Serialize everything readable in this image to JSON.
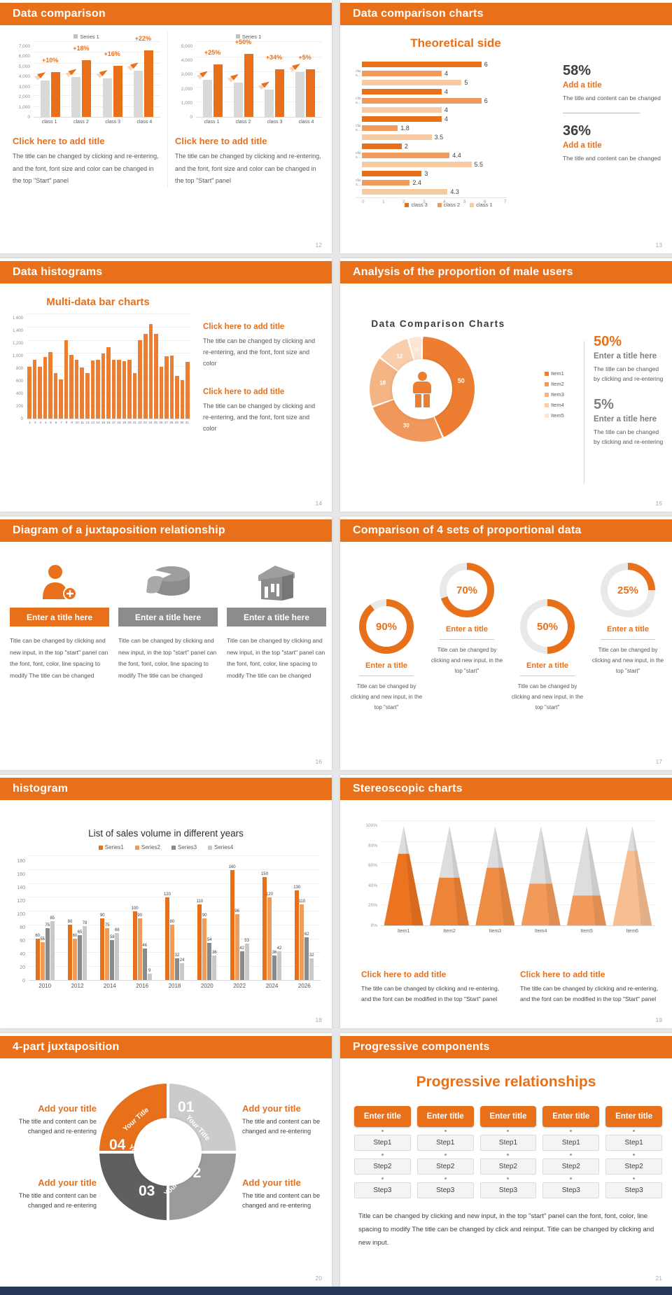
{
  "accent": "#E8701A",
  "slides": {
    "s12": {
      "header": "Data comparison",
      "page": "12",
      "panels": [
        {
          "legend": {
            "items": [
              {
                "label": "Series 1",
                "color": "#BFBFBF"
              }
            ]
          },
          "chart_data": {
            "type": "bar",
            "categories": [
              "class 1",
              "class 2",
              "class 3",
              "class 4"
            ],
            "series": [
              {
                "name": "base",
                "color": "#D9D9D9",
                "values": [
                  3400,
                  3700,
                  3600,
                  4300
                ]
              },
              {
                "name": "Series 1",
                "color": "#E8701A",
                "values": [
                  4200,
                  5300,
                  4800,
                  6200
                ]
              }
            ],
            "growth_labels": [
              "+10%",
              "+18%",
              "+16%",
              "+22%"
            ],
            "ylim": [
              0,
              7000
            ],
            "yticks": [
              "7,000",
              "6,000",
              "5,000",
              "4,000",
              "3,000",
              "2,000",
              "1,000",
              "0"
            ]
          },
          "title": "Click here to add title",
          "body": "The title can be changed by clicking and re-entering, and the font, font size and color can be changed in the top \"Start\" panel"
        },
        {
          "legend": {
            "items": [
              {
                "label": "Series 1",
                "color": "#BFBFBF"
              }
            ]
          },
          "chart_data": {
            "type": "bar",
            "categories": [
              "class 1",
              "class 2",
              "class 3",
              "class 4"
            ],
            "series": [
              {
                "name": "base",
                "color": "#D9D9D9",
                "values": [
                  2500,
                  2300,
                  1800,
                  3000
                ]
              },
              {
                "name": "Series 1",
                "color": "#E8701A",
                "values": [
                  3500,
                  4200,
                  3200,
                  3200
                ]
              }
            ],
            "growth_labels": [
              "+25%",
              "+50%",
              "+34%",
              "+5%"
            ],
            "ylim": [
              0,
              5000
            ],
            "yticks": [
              "5,000",
              "4,000",
              "3,000",
              "2,000",
              "1,000",
              "0"
            ]
          },
          "title": "Click here to add title",
          "body": "The title can be changed by clicking and re-entering, and the font, font size and color can be changed in the top \"Start\" panel"
        }
      ]
    },
    "s13": {
      "header": "Data comparison charts",
      "page": "13",
      "chart_title": "Theoretical side",
      "chart_data": {
        "type": "bar",
        "orientation": "horizontal",
        "group_label_display": "clas…",
        "colors": [
          "#E8701A",
          "#F09B5A",
          "#F6CBA4"
        ],
        "series_order": [
          "class 3",
          "class 2",
          "class 1"
        ],
        "groups": [
          [
            6,
            4,
            5
          ],
          [
            4,
            6,
            4
          ],
          [
            4,
            1.8,
            3.5
          ],
          [
            2,
            4.4,
            5.5
          ],
          [
            3,
            2.4,
            4.3
          ]
        ],
        "xlim": [
          0,
          7
        ],
        "xticks": [
          "0",
          "1",
          "2",
          "3",
          "4",
          "5",
          "6",
          "7"
        ]
      },
      "legend": {
        "items": [
          {
            "label": "class 3",
            "color": "#E8701A"
          },
          {
            "label": "class 2",
            "color": "#F09B5A"
          },
          {
            "label": "class 1",
            "color": "#F6CBA4"
          }
        ]
      },
      "stats": [
        {
          "pct": "58%",
          "title": "Add a title",
          "body": "The title and content can be changed"
        },
        {
          "pct": "36%",
          "title": "Add a title",
          "body": "The title and content can be changed"
        }
      ]
    },
    "s14": {
      "header": "Data histograms",
      "page": "14",
      "chart_title": "Multi-data bar charts",
      "chart_data": {
        "type": "bar",
        "color": "#ED7D31",
        "ylim": [
          0,
          1600
        ],
        "yticks": [
          "1,600",
          "1,400",
          "1,200",
          "1,000",
          "800",
          "600",
          "400",
          "200",
          "0"
        ],
        "x": [
          "1",
          "2",
          "3",
          "4",
          "5",
          "6",
          "7",
          "8",
          "9",
          "10",
          "11",
          "12",
          "13",
          "14",
          "15",
          "16",
          "17",
          "18",
          "19",
          "20",
          "21",
          "22",
          "23",
          "24",
          "25",
          "26",
          "27",
          "28",
          "29",
          "30",
          "31"
        ],
        "values": [
          800,
          900,
          800,
          950,
          1020,
          700,
          600,
          1200,
          980,
          900,
          780,
          700,
          890,
          900,
          1000,
          1100,
          900,
          900,
          880,
          900,
          700,
          1200,
          1300,
          1450,
          1300,
          800,
          960,
          970,
          660,
          590,
          870
        ]
      },
      "blocks": [
        {
          "title": "Click here to add title",
          "body": "The title can be changed by clicking and re-entering, and the font, font size and color"
        },
        {
          "title": "Click here to add title",
          "body": "The title can be changed by clicking and re-entering, and the font, font size and color"
        }
      ]
    },
    "s15": {
      "header": "Analysis of the proportion of male users",
      "page": "15",
      "chart_title": "Data Comparison Charts",
      "chart_data": {
        "type": "pie",
        "labels": [
          "Item1",
          "Item2",
          "Item3",
          "Item4",
          "Item5"
        ],
        "values": [
          50,
          30,
          18,
          12,
          5
        ],
        "colors": [
          "#ED7D31",
          "#F0985B",
          "#F4B484",
          "#F8CEAC",
          "#FBE5D3"
        ]
      },
      "legend": {
        "items": [
          {
            "label": "Item1",
            "color": "#ED7D31"
          },
          {
            "label": "Item2",
            "color": "#F0985B"
          },
          {
            "label": "Item3",
            "color": "#F4B484"
          },
          {
            "label": "Item4",
            "color": "#F8CEAC"
          },
          {
            "label": "Item5",
            "color": "#FBE5D3"
          }
        ]
      },
      "stats": [
        {
          "pct": "50%",
          "title": "Enter a title here",
          "body": "The title can be changed by clicking and re-entering"
        },
        {
          "pct": "5%",
          "title": "Enter a title here",
          "body": "The title can be changed by clicking and re-entering"
        }
      ]
    },
    "s16": {
      "header": "Diagram of a juxtaposition relationship",
      "page": "16",
      "items": [
        {
          "title": "Enter a title here",
          "color": "#E8701A",
          "icon": "person-plus-icon",
          "body": "Title can be changed by clicking and new input, in the top \"start\" panel can the font, font, color, line spacing to modify The title can be changed"
        },
        {
          "title": "Enter a title here",
          "color": "#8C8C8C",
          "icon": "cake-icon",
          "body": "Title can be changed by clicking and new input, in the top \"start\" panel can the font, font, color, line spacing to modify The title can be changed"
        },
        {
          "title": "Enter a title here",
          "color": "#8C8C8C",
          "icon": "building-icon",
          "body": "Title can be changed by clicking and new input, in the top \"start\" panel can the font, font, color, line spacing to modify The title can be changed"
        }
      ]
    },
    "s17": {
      "header": "Comparison of 4 sets of proportional data",
      "page": "17",
      "chart_data": {
        "type": "donut-gauges",
        "values": [
          90,
          70,
          50,
          25
        ]
      },
      "gauges": [
        {
          "pct": 90,
          "pct_label": "90%",
          "title": "Enter a title",
          "body": "Title can be changed by clicking and new input, in the top \"start\""
        },
        {
          "pct": 70,
          "pct_label": "70%",
          "title": "Enter a title",
          "body": "Title can be changed by clicking and new input, in the top \"start\""
        },
        {
          "pct": 50,
          "pct_label": "50%",
          "title": "Enter a title",
          "body": "Title can be changed by clicking and new input, in the top \"start\""
        },
        {
          "pct": 25,
          "pct_label": "25%",
          "title": "Enter a title",
          "body": "Title can be changed by clicking and new input, in the top \"start\""
        }
      ]
    },
    "s18": {
      "header": "histogram",
      "page": "18",
      "chart_title": "List of sales volume in different years",
      "chart_data": {
        "type": "bar",
        "categories": [
          "2010",
          "2012",
          "2014",
          "2016",
          "2018",
          "2020",
          "2022",
          "2024",
          "2026"
        ],
        "series": [
          {
            "name": "Series1",
            "color": "#E8701A",
            "values": [
              60,
              80,
              90,
              100,
              120,
              110,
              160,
              150,
              130
            ]
          },
          {
            "name": "Series2",
            "color": "#F19B59",
            "values": [
              55,
              60,
              75,
              90,
              80,
              90,
              96,
              120,
              110
            ]
          },
          {
            "name": "Series3",
            "color": "#8A8A8A",
            "values": [
              75,
              65,
              58,
              46,
              32,
              54,
              42,
              36,
              62
            ]
          },
          {
            "name": "Series4",
            "color": "#C9C9C9",
            "values": [
              85,
              78,
              68,
              9,
              24,
              36,
              53,
              42,
              32
            ]
          }
        ],
        "ylim": [
          0,
          180
        ],
        "yticks": [
          "180",
          "160",
          "140",
          "120",
          "100",
          "80",
          "60",
          "40",
          "20",
          "0"
        ]
      },
      "legend": {
        "items": [
          {
            "label": "Series1",
            "color": "#E8701A"
          },
          {
            "label": "Series2",
            "color": "#F19B59"
          },
          {
            "label": "Series3",
            "color": "#8A8A8A"
          },
          {
            "label": "Series4",
            "color": "#C9C9C9"
          }
        ]
      }
    },
    "s19": {
      "header": "Stereoscopic charts",
      "page": "19",
      "chart_data": {
        "type": "cone",
        "categories": [
          "Item1",
          "Item2",
          "Item3",
          "Item4",
          "Item5",
          "Item6"
        ],
        "values_pct": [
          72,
          48,
          58,
          42,
          30,
          75
        ],
        "colors": [
          "#EC7420",
          "#EE8438",
          "#EF8C44",
          "#F29A5A",
          "#F29A5A",
          "#F7BE92"
        ],
        "yticks": [
          "100%",
          "80%",
          "60%",
          "40%",
          "20%",
          "0%"
        ]
      },
      "blocks": [
        {
          "title": "Click here to add title",
          "body": "The title can be changed by clicking and re-entering, and the font can be modified in the top \"Start\" panel"
        },
        {
          "title": "Click here to add title",
          "body": "The title can be changed by clicking and re-entering, and the font can be modified in the top \"Start\" panel"
        }
      ]
    },
    "s20": {
      "header": "4-part juxtaposition",
      "page": "20",
      "ring": {
        "segment_label": "Your Title",
        "numbers": [
          "01",
          "02",
          "03",
          "04"
        ],
        "colors": [
          "#CBCBCB",
          "#9B9B9B",
          "#5F5F5F",
          "#E8701A"
        ]
      },
      "blocks": [
        {
          "title": "Add your title",
          "body": "The title and content can be changed and re-entering"
        },
        {
          "title": "Add your title",
          "body": "The title and content can be changed and re-entering"
        },
        {
          "title": "Add your title",
          "body": "The title and content can be changed and re-entering"
        },
        {
          "title": "Add your title",
          "body": "The title and content can be changed and re-entering"
        }
      ]
    },
    "s21": {
      "header": "Progressive components",
      "page": "21",
      "title": "Progressive relationships",
      "columns": [
        {
          "title": "Enter title",
          "steps": [
            "Step1",
            "Step2",
            "Step3"
          ]
        },
        {
          "title": "Enter title",
          "steps": [
            "Step1",
            "Step2",
            "Step3"
          ]
        },
        {
          "title": "Enter title",
          "steps": [
            "Step1",
            "Step2",
            "Step3"
          ]
        },
        {
          "title": "Enter title",
          "steps": [
            "Step1",
            "Step2",
            "Step3"
          ]
        },
        {
          "title": "Enter title",
          "steps": [
            "Step1",
            "Step2",
            "Step3"
          ]
        }
      ],
      "body": "Title can be changed by clicking and new input, in the top \"start\" panel can the font, font, color, line spacing to modify The title can be changed by click and reinput. Title can be changed by clicking and new input."
    }
  }
}
